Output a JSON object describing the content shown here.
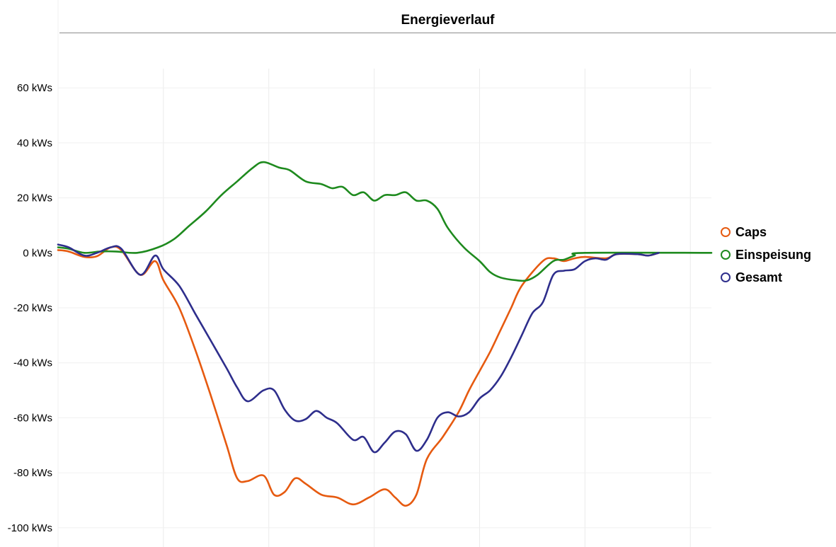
{
  "chart_data": {
    "type": "line",
    "title": "Energieverlauf",
    "xlabel": "",
    "ylabel": "",
    "ylim": [
      -107,
      67
    ],
    "xlim": [
      0,
      62
    ],
    "yticks": [
      60,
      40,
      20,
      0,
      -20,
      -40,
      -60,
      -80,
      -100
    ],
    "ytick_labels": [
      "60 kWs",
      "40 kWs",
      "20 kWs",
      "0 kWs",
      "-20 kWs",
      "-40 kWs",
      "-60 kWs",
      "-80 kWs",
      "-100 kWs"
    ],
    "x_gridlines": [
      10,
      20,
      30,
      40,
      50,
      60
    ],
    "grid": true,
    "legend_position": "right",
    "series": [
      {
        "name": "Caps",
        "color": "#e65a10",
        "points": [
          [
            0,
            1
          ],
          [
            1,
            0.5
          ],
          [
            2.5,
            -1.5
          ],
          [
            3.7,
            -1.2
          ],
          [
            5,
            2
          ],
          [
            6,
            1
          ],
          [
            7.8,
            -8
          ],
          [
            9.2,
            -3
          ],
          [
            10,
            -10
          ],
          [
            11.5,
            -20
          ],
          [
            13,
            -35
          ],
          [
            14.5,
            -52
          ],
          [
            16,
            -70
          ],
          [
            17,
            -82
          ],
          [
            18,
            -83
          ],
          [
            19.5,
            -81
          ],
          [
            20.5,
            -88
          ],
          [
            21.5,
            -87
          ],
          [
            22.5,
            -82
          ],
          [
            23.5,
            -84
          ],
          [
            25,
            -88
          ],
          [
            26.5,
            -89
          ],
          [
            28,
            -91.5
          ],
          [
            29.5,
            -89
          ],
          [
            31,
            -86
          ],
          [
            32,
            -89
          ],
          [
            33,
            -92
          ],
          [
            34,
            -88
          ],
          [
            35,
            -75
          ],
          [
            36.5,
            -67
          ],
          [
            38,
            -58
          ],
          [
            39,
            -50
          ],
          [
            40,
            -43
          ],
          [
            41,
            -36
          ],
          [
            42,
            -28
          ],
          [
            43,
            -20
          ],
          [
            44,
            -12
          ],
          [
            46,
            -3
          ],
          [
            47,
            -2
          ],
          [
            48,
            -3
          ],
          [
            49,
            -2
          ],
          [
            50,
            -1.5
          ],
          [
            52,
            -2
          ],
          [
            53,
            -0.5
          ],
          [
            55,
            -0.5
          ],
          [
            56,
            -1
          ],
          [
            57,
            0
          ]
        ]
      },
      {
        "name": "Einspeisung",
        "color": "#1e8a1e",
        "points": [
          [
            0,
            2
          ],
          [
            1,
            1.5
          ],
          [
            2.5,
            0
          ],
          [
            4,
            0.5
          ],
          [
            5.5,
            0.5
          ],
          [
            7.5,
            0
          ],
          [
            9.5,
            2
          ],
          [
            11,
            5
          ],
          [
            12.5,
            10
          ],
          [
            14,
            15
          ],
          [
            15.5,
            21
          ],
          [
            17,
            26
          ],
          [
            18.5,
            31
          ],
          [
            19.5,
            33
          ],
          [
            21,
            31
          ],
          [
            22,
            30
          ],
          [
            23.5,
            26
          ],
          [
            25,
            25
          ],
          [
            26,
            23.5
          ],
          [
            27,
            24
          ],
          [
            28,
            21
          ],
          [
            29,
            22
          ],
          [
            30,
            19
          ],
          [
            31,
            21
          ],
          [
            32,
            21
          ],
          [
            33,
            22
          ],
          [
            34,
            19
          ],
          [
            35,
            19
          ],
          [
            36,
            16
          ],
          [
            37,
            9
          ],
          [
            38.5,
            2
          ],
          [
            40,
            -3
          ],
          [
            41,
            -7
          ],
          [
            42,
            -9
          ],
          [
            43.5,
            -10
          ],
          [
            44.5,
            -10
          ],
          [
            45.5,
            -8
          ],
          [
            47,
            -3
          ],
          [
            48,
            -2.5
          ],
          [
            49,
            -1
          ],
          [
            50,
            0
          ],
          [
            62,
            0
          ]
        ]
      },
      {
        "name": "Gesamt",
        "color": "#2e2e8c",
        "points": [
          [
            0,
            3
          ],
          [
            1,
            2
          ],
          [
            2.5,
            -1
          ],
          [
            3.7,
            0
          ],
          [
            5,
            2
          ],
          [
            6,
            1.5
          ],
          [
            7.8,
            -8
          ],
          [
            9.2,
            -1
          ],
          [
            10,
            -6
          ],
          [
            11.5,
            -12
          ],
          [
            13,
            -22
          ],
          [
            14.5,
            -32
          ],
          [
            16,
            -42
          ],
          [
            17,
            -49
          ],
          [
            18,
            -54
          ],
          [
            19.5,
            -50
          ],
          [
            20.5,
            -50
          ],
          [
            21.5,
            -57
          ],
          [
            22.5,
            -61
          ],
          [
            23.5,
            -60.5
          ],
          [
            24.5,
            -57.5
          ],
          [
            25.5,
            -60
          ],
          [
            26.5,
            -62
          ],
          [
            28,
            -68
          ],
          [
            29,
            -67
          ],
          [
            30,
            -72.5
          ],
          [
            31,
            -69
          ],
          [
            32,
            -65
          ],
          [
            33,
            -66
          ],
          [
            34,
            -72
          ],
          [
            35,
            -68
          ],
          [
            36,
            -60
          ],
          [
            37,
            -58
          ],
          [
            38,
            -59.5
          ],
          [
            39,
            -58
          ],
          [
            40,
            -53
          ],
          [
            41,
            -50
          ],
          [
            42,
            -45
          ],
          [
            43,
            -38
          ],
          [
            44,
            -30
          ],
          [
            45,
            -22
          ],
          [
            46,
            -18
          ],
          [
            47,
            -8
          ],
          [
            48,
            -6.5
          ],
          [
            49,
            -6
          ],
          [
            50,
            -3
          ],
          [
            51,
            -2
          ],
          [
            52,
            -2.5
          ],
          [
            53,
            -0.5
          ],
          [
            55,
            -0.5
          ],
          [
            56,
            -1
          ],
          [
            57,
            0
          ]
        ]
      }
    ]
  }
}
